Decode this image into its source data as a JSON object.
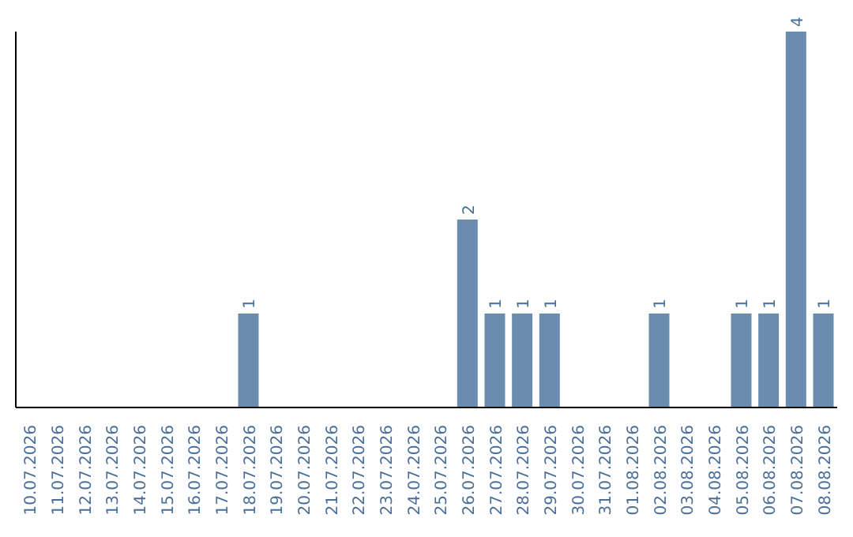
{
  "chart_data": {
    "type": "bar",
    "categories": [
      "10.07.2026",
      "11.07.2026",
      "12.07.2026",
      "13.07.2026",
      "14.07.2026",
      "15.07.2026",
      "16.07.2026",
      "17.07.2026",
      "18.07.2026",
      "19.07.2026",
      "20.07.2026",
      "21.07.2026",
      "22.07.2026",
      "23.07.2026",
      "24.07.2026",
      "25.07.2026",
      "26.07.2026",
      "27.07.2026",
      "28.07.2026",
      "29.07.2026",
      "30.07.2026",
      "31.07.2026",
      "01.08.2026",
      "02.08.2026",
      "03.08.2026",
      "04.08.2026",
      "05.08.2026",
      "06.08.2026",
      "07.08.2026",
      "08.08.2026"
    ],
    "values": [
      0,
      0,
      0,
      0,
      0,
      0,
      0,
      0,
      1,
      0,
      0,
      0,
      0,
      0,
      0,
      0,
      2,
      1,
      1,
      1,
      0,
      0,
      0,
      1,
      0,
      0,
      1,
      1,
      4,
      1
    ],
    "value_labels": [
      null,
      null,
      null,
      null,
      null,
      null,
      null,
      null,
      "1",
      null,
      null,
      null,
      null,
      null,
      null,
      null,
      "2",
      "1",
      "1",
      "1",
      null,
      null,
      null,
      "1",
      null,
      null,
      "1",
      "1",
      "4",
      "1"
    ],
    "color": "#6a8caf",
    "tick_labels": "x",
    "grid": false,
    "legend": false
  }
}
